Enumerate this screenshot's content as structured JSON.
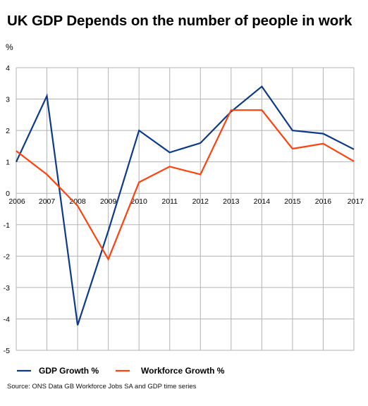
{
  "chart_data": {
    "type": "line",
    "title": "UK GDP Depends on the number of people in work",
    "ylabel": "%",
    "xlabel": "",
    "x": [
      "2006",
      "2007",
      "2008",
      "2009",
      "2010",
      "2011",
      "2012",
      "2013",
      "2014",
      "2015",
      "2016",
      "2017"
    ],
    "ylim": [
      -5,
      4
    ],
    "yticks": [
      4,
      3,
      2,
      1,
      0,
      -1,
      -2,
      -3,
      -4,
      -5
    ],
    "grid": true,
    "legend_position": "bottom-left",
    "series": [
      {
        "name": "GDP Growth %",
        "color": "#0d3a8c",
        "values": [
          1.0,
          3.1,
          -4.2,
          -1.2,
          2.0,
          1.3,
          1.6,
          2.6,
          3.4,
          2.0,
          1.9,
          1.4
        ]
      },
      {
        "name": "Workforce Growth %",
        "color": "#ff420e",
        "values": [
          1.35,
          0.6,
          -0.4,
          -2.1,
          0.35,
          0.85,
          0.6,
          2.65,
          2.65,
          1.42,
          1.58,
          1.02
        ]
      }
    ],
    "source": "Source: ONS Data  GB Workforce Jobs SA and GDP time series"
  }
}
